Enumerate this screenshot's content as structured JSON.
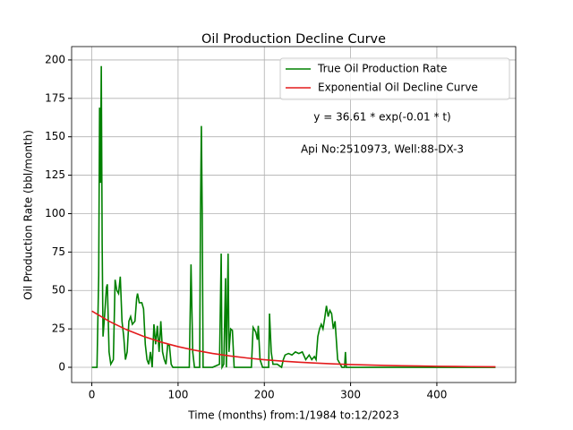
{
  "chart_data": {
    "type": "line",
    "title": "Oil Production Decline Curve",
    "x_label": "Time (months) from:1/1984 to:12/2023",
    "y_label": "Oil Production Rate (bbl/month)",
    "annotations": [
      "y = 36.61 * exp(-0.01 * t)",
      "Api No:2510973, Well:88-DX-3"
    ],
    "xlim": [
      -23.4,
      491.4
    ],
    "ylim": [
      -9.9,
      208.7
    ],
    "xticks": [
      0,
      100,
      200,
      300,
      400
    ],
    "yticks": [
      0,
      25,
      50,
      75,
      100,
      125,
      150,
      175,
      200
    ],
    "grid": true,
    "legend": "upper right",
    "series": [
      {
        "name": "True Oil Production Rate",
        "color": "#008000",
        "x": [
          0,
          6,
          8,
          9,
          10,
          11,
          12,
          13,
          15,
          17,
          18,
          20,
          22,
          25,
          27,
          29,
          31,
          33,
          35,
          37,
          39,
          41,
          43,
          45,
          47,
          50,
          52,
          53,
          55,
          58,
          60,
          62,
          64,
          66,
          68,
          70,
          72,
          74,
          76,
          78,
          80,
          82,
          84,
          86,
          88,
          90,
          92,
          94,
          100,
          110,
          113,
          115,
          117,
          119,
          125,
          126,
          127,
          128,
          129,
          134,
          140,
          148,
          150,
          151,
          153,
          155,
          156,
          158,
          159,
          161,
          163,
          165,
          170,
          180,
          185,
          187,
          190,
          192,
          193,
          195,
          198,
          205,
          206,
          208,
          210,
          215,
          220,
          222,
          224,
          228,
          232,
          236,
          240,
          244,
          248,
          252,
          255,
          258,
          260,
          262,
          264,
          266,
          268,
          270,
          272,
          274,
          276,
          278,
          280,
          282,
          285,
          290,
          293,
          294,
          295,
          300,
          468
        ],
        "values": [
          0,
          0,
          60,
          169,
          120,
          196,
          80,
          20,
          35,
          52,
          54,
          10,
          2,
          5,
          57,
          50,
          48,
          59,
          30,
          20,
          5,
          10,
          30,
          33,
          28,
          30,
          45,
          48,
          42,
          42,
          38,
          15,
          5,
          2,
          10,
          0,
          28,
          15,
          27,
          10,
          30,
          10,
          5,
          2,
          15,
          14,
          2,
          0,
          0,
          0,
          0,
          67,
          10,
          0,
          0,
          100,
          157,
          100,
          0,
          0,
          0,
          2,
          74,
          0,
          2,
          58,
          0,
          74,
          10,
          25,
          24,
          0,
          0,
          0,
          0,
          26,
          23,
          18,
          27,
          5,
          0,
          0,
          35,
          10,
          2,
          2,
          0,
          5,
          8,
          9,
          8,
          10,
          9,
          10,
          5,
          8,
          5,
          7,
          5,
          20,
          25,
          28,
          25,
          32,
          40,
          33,
          37,
          35,
          25,
          30,
          5,
          0,
          0,
          10,
          0,
          0,
          0
        ]
      },
      {
        "name": "Exponential Oil Decline Curve",
        "color": "#e31a1c",
        "x": [
          0,
          20,
          40,
          60,
          80,
          100,
          120,
          140,
          160,
          180,
          200,
          220,
          240,
          260,
          280,
          300,
          320,
          340,
          360,
          380,
          400,
          420,
          440,
          468
        ],
        "values": [
          36.61,
          29.97,
          24.54,
          20.09,
          16.45,
          13.47,
          11.03,
          9.03,
          7.39,
          6.05,
          4.95,
          4.06,
          3.32,
          2.72,
          2.23,
          1.82,
          1.49,
          1.22,
          1.0,
          0.82,
          0.67,
          0.55,
          0.45,
          0.34
        ]
      }
    ]
  }
}
